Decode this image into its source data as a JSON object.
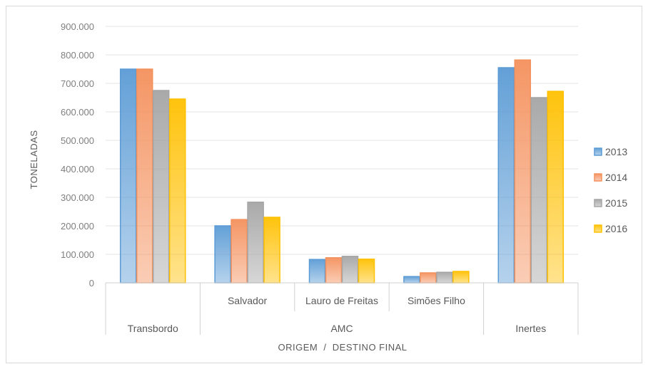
{
  "chart_data": {
    "type": "bar",
    "xlabel": "ORIGEM  /  DESTINO FINAL",
    "ylabel": "TONELADAS",
    "ylim": [
      0,
      900000
    ],
    "yticks": [
      "0",
      "100.000",
      "200.000",
      "300.000",
      "400.000",
      "500.000",
      "600.000",
      "700.000",
      "800.000",
      "900.000"
    ],
    "grid": true,
    "legend_position": "right",
    "categories": [
      "Transbordo",
      "Salvador",
      "Lauro de Freitas",
      "Simões Filho",
      "Inertes"
    ],
    "group_label": "AMC",
    "grouped_categories": [
      "Salvador",
      "Lauro de Freitas",
      "Simões Filho"
    ],
    "series": [
      {
        "name": "2013",
        "color": "#5b9bd5",
        "values": [
          750000,
          200000,
          82000,
          22000,
          755000
        ]
      },
      {
        "name": "2014",
        "color": "#f4905c",
        "values": [
          750000,
          222000,
          88000,
          35000,
          782000
        ]
      },
      {
        "name": "2015",
        "color": "#a5a5a5",
        "values": [
          675000,
          283000,
          93000,
          37000,
          650000
        ]
      },
      {
        "name": "2016",
        "color": "#ffc000",
        "values": [
          645000,
          230000,
          83000,
          40000,
          672000
        ]
      }
    ]
  }
}
